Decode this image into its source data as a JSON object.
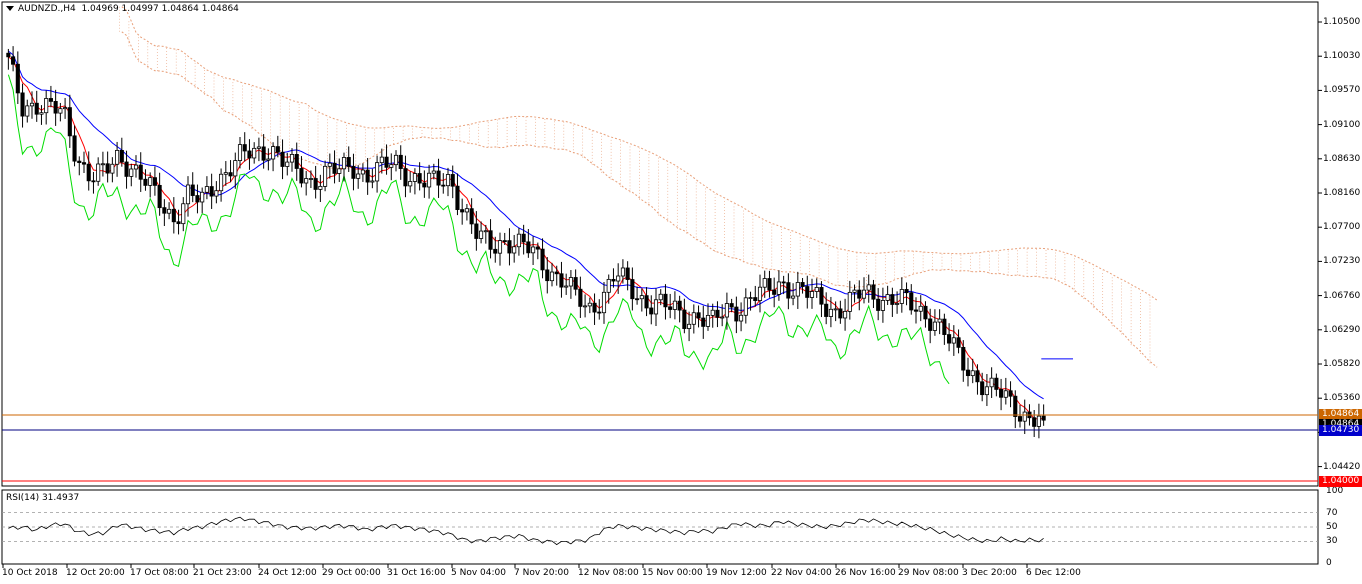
{
  "chart_header": {
    "symbol": "AUDNZD.,H4",
    "ohlc": "1.04969 1.04997 1.04864 1.04864"
  },
  "y_axis_labels": [
    "1.10500",
    "1.10030",
    "1.09570",
    "1.09100",
    "1.08630",
    "1.08160",
    "1.07700",
    "1.07230",
    "1.06760",
    "1.06290",
    "1.05820",
    "1.05360",
    "1.04420"
  ],
  "price_tags": {
    "last": "1.04864",
    "bid": "1.04864",
    "support": "1.04730",
    "target": "1.04000"
  },
  "x_axis_labels": [
    "10 Oct 2018",
    "12 Oct 20:00",
    "17 Oct 08:00",
    "21 Oct 23:00",
    "24 Oct 12:00",
    "29 Oct 00:00",
    "31 Oct 16:00",
    "5 Nov 04:00",
    "7 Nov 20:00",
    "12 Nov 08:00",
    "15 Nov 00:00",
    "19 Nov 12:00",
    "22 Nov 04:00",
    "26 Nov 16:00",
    "29 Nov 08:00",
    "3 Dec 20:00",
    "6 Dec 12:00"
  ],
  "rsi": {
    "title": "RSI(14) 31.4937",
    "levels": [
      "100",
      "70",
      "50",
      "30",
      "0"
    ]
  },
  "colors": {
    "candle": "#000000",
    "tenkan": "#ff0000",
    "kijun": "#0000ff",
    "chikou": "#00dd00",
    "cloud": "#e8a07a",
    "level_orange": "#cc6600",
    "level_blue": "#000080",
    "level_red": "#ff0000"
  },
  "chart_data": [
    {
      "type": "candlestick",
      "title": "AUDNZD.,H4",
      "ylim": [
        1.04,
        1.107
      ],
      "horizontal_levels": [
        1.04864,
        1.0473,
        1.04
      ],
      "close_path": [
        [
          0,
          1.0985
        ],
        [
          1,
          1.0925
        ],
        [
          2,
          1.093
        ],
        [
          3,
          1.092
        ],
        [
          4,
          1.0915
        ],
        [
          5,
          1.0855
        ],
        [
          6,
          1.0825
        ],
        [
          7,
          1.083
        ],
        [
          8,
          1.0858
        ],
        [
          9,
          1.084
        ],
        [
          10,
          1.0815
        ],
        [
          11,
          1.079
        ],
        [
          12,
          1.077
        ],
        [
          13,
          1.08
        ],
        [
          14,
          1.079
        ],
        [
          15,
          1.082
        ],
        [
          16,
          1.084
        ],
        [
          17,
          1.0855
        ],
        [
          18,
          1.086
        ],
        [
          19,
          1.087
        ],
        [
          20,
          1.0845
        ],
        [
          21,
          1.083
        ],
        [
          22,
          1.082
        ],
        [
          23,
          1.0835
        ],
        [
          24,
          1.0833
        ],
        [
          25,
          1.084
        ],
        [
          26,
          1.083
        ],
        [
          27,
          1.0837
        ],
        [
          28,
          1.0845
        ],
        [
          29,
          1.083
        ],
        [
          30,
          1.082
        ],
        [
          31,
          1.0815
        ],
        [
          32,
          1.0825
        ],
        [
          33,
          1.078
        ],
        [
          34,
          1.074
        ],
        [
          35,
          1.073
        ],
        [
          36,
          1.074
        ],
        [
          37,
          1.073
        ],
        [
          38,
          1.072
        ],
        [
          39,
          1.07
        ],
        [
          40,
          1.0685
        ],
        [
          41,
          1.066
        ],
        [
          42,
          1.064
        ],
        [
          43,
          1.066
        ],
        [
          44,
          1.069
        ],
        [
          45,
          1.067
        ],
        [
          46,
          1.0655
        ],
        [
          47,
          1.065
        ],
        [
          48,
          1.064
        ],
        [
          49,
          1.063
        ],
        [
          50,
          1.0635
        ],
        [
          51,
          1.062
        ],
        [
          52,
          1.064
        ],
        [
          53,
          1.0645
        ],
        [
          54,
          1.066
        ],
        [
          55,
          1.0665
        ],
        [
          56,
          1.068
        ],
        [
          57,
          1.067
        ],
        [
          58,
          1.066
        ],
        [
          59,
          1.065
        ],
        [
          60,
          1.064
        ],
        [
          61,
          1.065
        ],
        [
          62,
          1.0665
        ],
        [
          63,
          1.066
        ],
        [
          64,
          1.0655
        ],
        [
          65,
          1.065
        ],
        [
          66,
          1.064
        ],
        [
          67,
          1.063
        ],
        [
          68,
          1.06
        ],
        [
          69,
          1.057
        ],
        [
          70,
          1.055
        ],
        [
          71,
          1.053
        ],
        [
          72,
          1.052
        ],
        [
          73,
          1.0505
        ],
        [
          74,
          1.049
        ],
        [
          75,
          1.04864
        ]
      ]
    },
    {
      "type": "line",
      "title": "RSI(14) 31.4937",
      "ylim": [
        0,
        100
      ],
      "reference_lines": [
        70,
        50,
        30
      ],
      "values": [
        48,
        50,
        46,
        52,
        55,
        44,
        40,
        42,
        54,
        50,
        46,
        44,
        42,
        48,
        50,
        56,
        60,
        62,
        58,
        55,
        50,
        49,
        48,
        50,
        52,
        50,
        46,
        50,
        52,
        49,
        47,
        44,
        40,
        32,
        30,
        34,
        36,
        38,
        32,
        30,
        28,
        30,
        32,
        45,
        52,
        50,
        48,
        46,
        44,
        42,
        45,
        44,
        50,
        55,
        52,
        52,
        58,
        54,
        52,
        50,
        52,
        56,
        60,
        58,
        55,
        54,
        50,
        46,
        40,
        36,
        32,
        30,
        34,
        30,
        32,
        31.4937
      ]
    }
  ]
}
